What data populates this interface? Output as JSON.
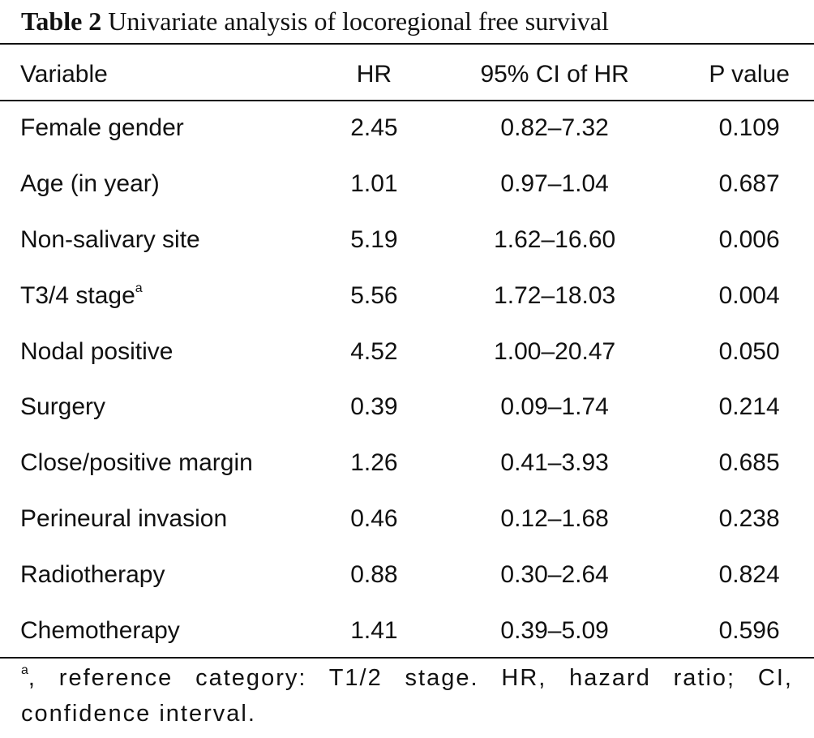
{
  "caption": {
    "label": "Table 2",
    "title": "Univariate analysis of locoregional free survival"
  },
  "table": {
    "headers": [
      "Variable",
      "HR",
      "95% CI of HR",
      "P value"
    ],
    "rows": [
      {
        "variable": "Female gender",
        "note": "",
        "hr": "2.45",
        "ci": "0.82–7.32",
        "p": "0.109"
      },
      {
        "variable": "Age (in year)",
        "note": "",
        "hr": "1.01",
        "ci": "0.97–1.04",
        "p": "0.687"
      },
      {
        "variable": "Non-salivary site",
        "note": "",
        "hr": "5.19",
        "ci": "1.62–16.60",
        "p": "0.006"
      },
      {
        "variable": "T3/4 stage",
        "note": "a",
        "hr": "5.56",
        "ci": "1.72–18.03",
        "p": "0.004"
      },
      {
        "variable": "Nodal positive",
        "note": "",
        "hr": "4.52",
        "ci": "1.00–20.47",
        "p": "0.050"
      },
      {
        "variable": "Surgery",
        "note": "",
        "hr": "0.39",
        "ci": "0.09–1.74",
        "p": "0.214"
      },
      {
        "variable": "Close/positive margin",
        "note": "",
        "hr": "1.26",
        "ci": "0.41–3.93",
        "p": "0.685"
      },
      {
        "variable": "Perineural invasion",
        "note": "",
        "hr": "0.46",
        "ci": "0.12–1.68",
        "p": "0.238"
      },
      {
        "variable": "Radiotherapy",
        "note": "",
        "hr": "0.88",
        "ci": "0.30–2.64",
        "p": "0.824"
      },
      {
        "variable": "Chemotherapy",
        "note": "",
        "hr": "1.41",
        "ci": "0.39–5.09",
        "p": "0.596"
      }
    ]
  },
  "footnote": {
    "marker": "a",
    "text": ", reference category: T1/2 stage. HR, hazard ratio; CI, confidence interval."
  }
}
